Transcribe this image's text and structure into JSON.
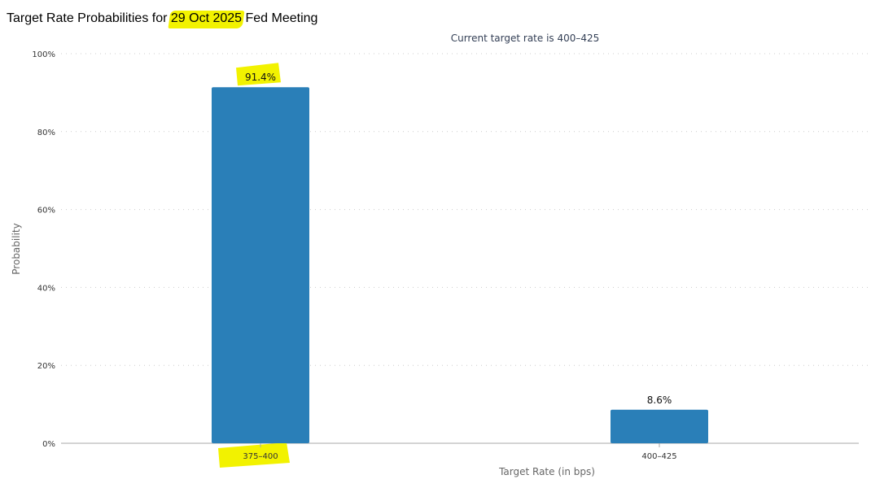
{
  "title": {
    "prefix": "Target Rate Probabilities for ",
    "date": "29 Oct 2025",
    "suffix": " Fed Meeting"
  },
  "chart_data": {
    "type": "bar",
    "subtitle": "Current target rate is 400–425",
    "xlabel": "Target Rate (in bps)",
    "ylabel": "Probability",
    "categories": [
      "375–400",
      "400–425"
    ],
    "values": [
      91.4,
      8.6
    ],
    "value_labels": [
      "91.4%",
      "8.6%"
    ],
    "ylim": [
      0,
      100
    ],
    "yticks": [
      0,
      20,
      40,
      60,
      80,
      100
    ],
    "ytick_labels": [
      "0%",
      "20%",
      "40%",
      "60%",
      "80%",
      "100%"
    ],
    "grid": true,
    "legend": "none",
    "colors": {
      "bar": "#2a7fb8",
      "highlight": "#f2f200",
      "grid": "#cccccc",
      "subtitle": "#333f55"
    }
  }
}
